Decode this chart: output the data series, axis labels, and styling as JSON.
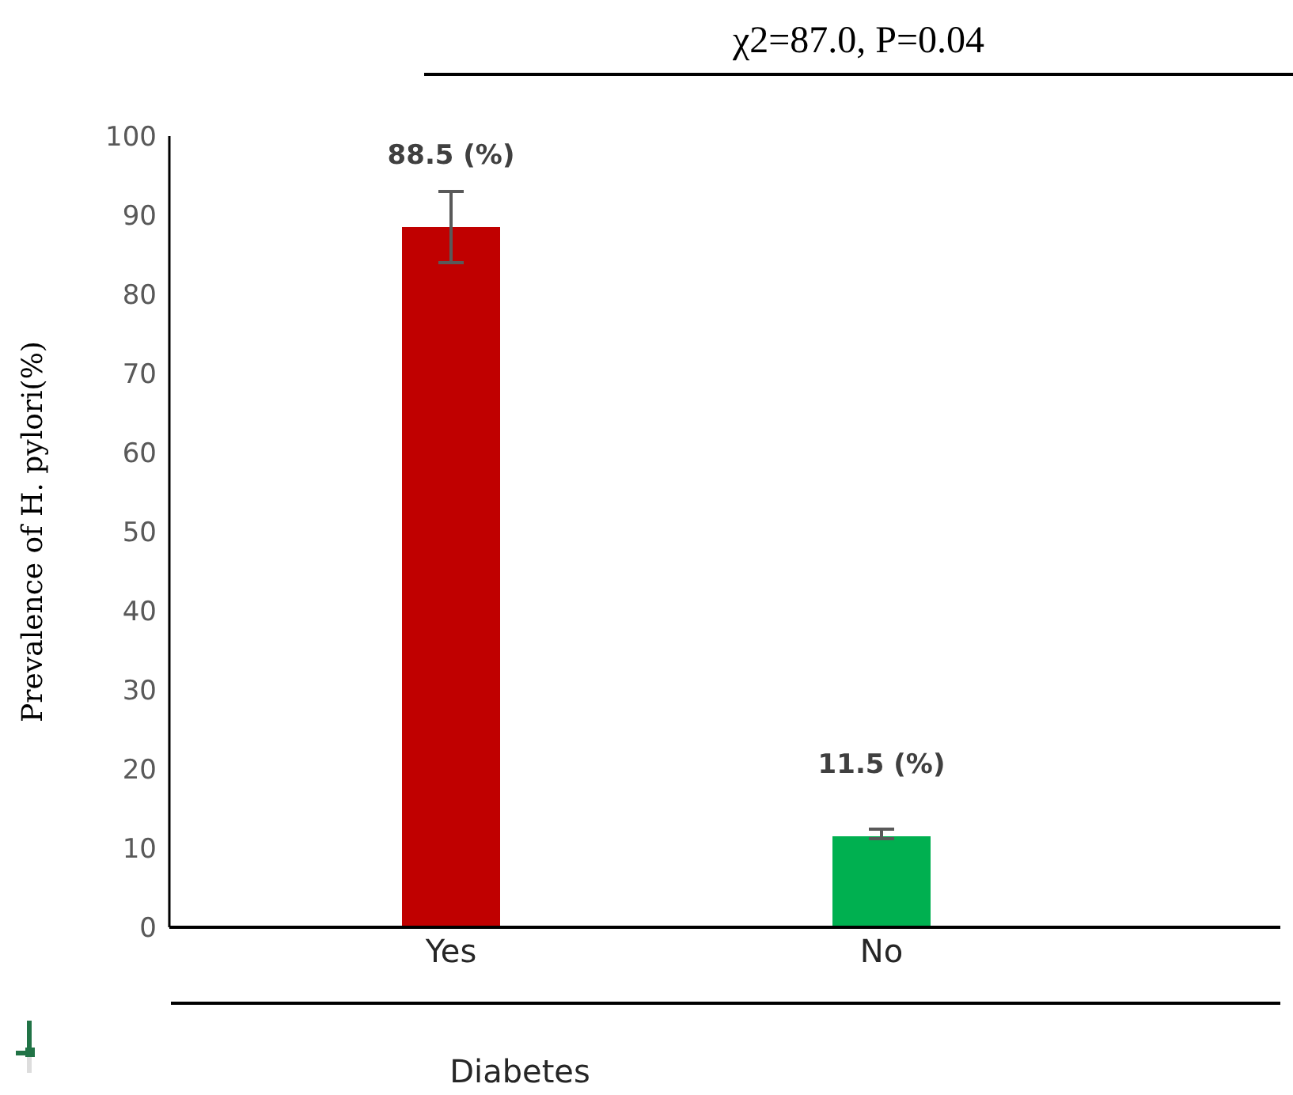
{
  "chart_data": {
    "type": "bar",
    "title": "χ2=87.0, P=0.04",
    "xlabel": "Diabetes",
    "ylabel": "Prevalence of H. pylori(%)",
    "categories": [
      "Yes",
      "No"
    ],
    "values": [
      88.5,
      11.5
    ],
    "colors": [
      "#c00000",
      "#00b050"
    ],
    "errors": [
      [
        84,
        93
      ],
      [
        11.2,
        12.4
      ]
    ],
    "value_labels": [
      "88.5 (%)",
      "11.5 (%)"
    ],
    "ylim": [
      0,
      100
    ],
    "yticks": [
      0,
      10,
      20,
      30,
      40,
      50,
      60,
      70,
      80,
      90,
      100
    ],
    "grid": false,
    "legend": false
  }
}
